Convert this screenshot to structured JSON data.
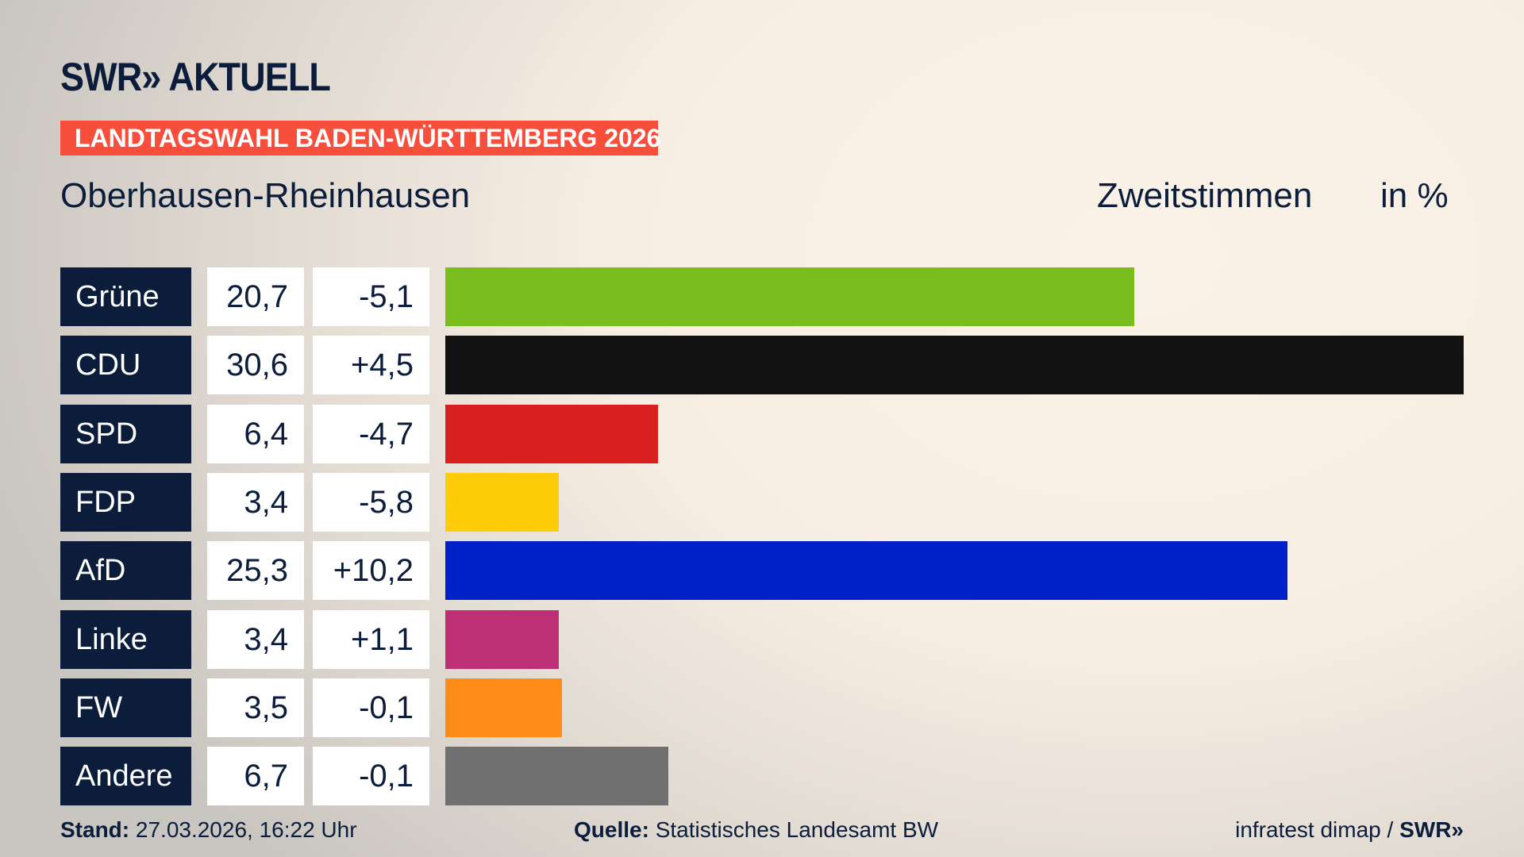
{
  "header": {
    "logo": "SWR» AKTUELL",
    "banner": "LANDTAGSWAHL BADEN-WÜRTTEMBERG 2026",
    "district": "Oberhausen-Rheinhausen",
    "vote_type": "Zweitstimmen",
    "unit": "in %"
  },
  "chart_data": {
    "type": "bar",
    "orientation": "horizontal",
    "xlim": [
      0,
      30.6
    ],
    "categories": [
      "Grüne",
      "CDU",
      "SPD",
      "FDP",
      "AfD",
      "Linke",
      "FW",
      "Andere"
    ],
    "values": [
      "20,7",
      "30,6",
      "6,4",
      "3,4",
      "25,3",
      "3,4",
      "3,5",
      "6,7"
    ],
    "numeric_values": [
      20.7,
      30.6,
      6.4,
      3.4,
      25.3,
      3.4,
      3.5,
      6.7
    ],
    "changes": [
      "-5,1",
      "+4,5",
      "-4,7",
      "-5,8",
      "+10,2",
      "+1,1",
      "-0,1",
      "-0,1"
    ],
    "colors": [
      "#7abd1e",
      "#111111",
      "#d8201e",
      "#ffcc0a",
      "#0021c8",
      "#be3075",
      "#ff8c18",
      "#707070"
    ]
  },
  "footer": {
    "stand_label": "Stand:",
    "stand_value": "27.03.2026, 16:22 Uhr",
    "quelle_label": "Quelle:",
    "quelle_value": "Statistisches Landesamt BW",
    "credit": "infratest dimap / ",
    "credit_logo": "SWR»"
  }
}
